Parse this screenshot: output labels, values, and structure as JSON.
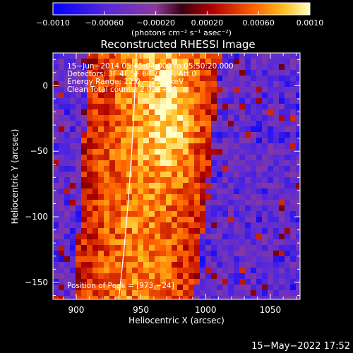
{
  "colorbar": {
    "tick_labels": [
      "−0.0010",
      "−0.00060",
      "−0.00020",
      "0.00020",
      "0.00060",
      "0.0010"
    ],
    "tick_values": [
      -0.001,
      -0.0006,
      -0.0002,
      0.0002,
      0.0006,
      0.001
    ],
    "range": [
      -0.001,
      0.001
    ],
    "units_label": "(photons cm⁻² s⁻¹ asec⁻²)"
  },
  "plot": {
    "title": "Reconstructed RHESSI Image",
    "xlabel": "Heliocentric X (arcsec)",
    "ylabel": "Heliocentric Y (arcsec)",
    "xlim": [
      882,
      1073
    ],
    "ylim": [
      -163,
      25
    ],
    "x_tick_labels": [
      "900",
      "950",
      "1000",
      "1050"
    ],
    "x_tick_values": [
      900,
      950,
      1000,
      1050
    ],
    "y_tick_labels": [
      "0",
      "−50",
      "−100",
      "−150"
    ],
    "y_tick_values": [
      0,
      -50,
      -100,
      -150
    ],
    "annotations": [
      "15−Jun−2014 05:45:04.000 to 05:50:20.000",
      "Detectors: 3F 4F 5F 6F 7F 8F, Att 0",
      "Energy Range: 12.0 − 25.0 keV",
      "Clean     Total counts: 2.02E+04"
    ],
    "peak_label": "Position of Peak = [973,−24]",
    "peak": [
      973,
      -24
    ]
  },
  "footer": {
    "timestamp": "15−May−2022 17:52"
  },
  "colors": {
    "background": "#000000",
    "foreground": "#ffffff",
    "limb": "#ffffff"
  }
}
